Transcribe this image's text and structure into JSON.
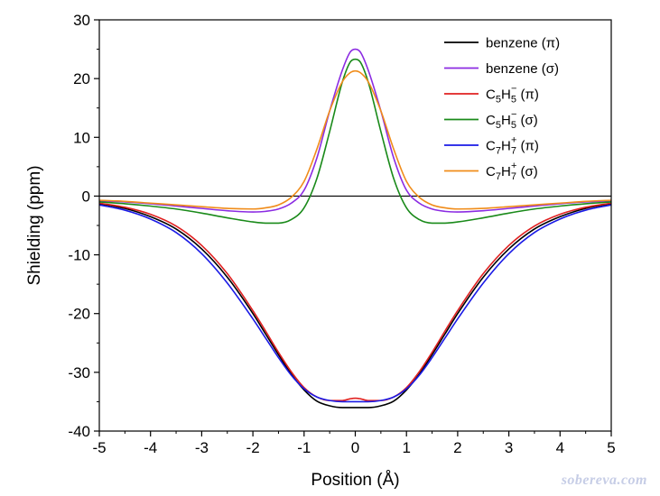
{
  "chart_data": {
    "type": "line",
    "xlabel": "Position (Å)",
    "ylabel": "Shielding (ppm)",
    "xlim": [
      -5,
      5
    ],
    "ylim": [
      -40,
      30
    ],
    "x_ticks": [
      "-5",
      "-4",
      "-3",
      "-2",
      "-1",
      "0",
      "1",
      "2",
      "3",
      "4",
      "5"
    ],
    "y_ticks": [
      "-40",
      "-30",
      "-20",
      "-10",
      "0",
      "10",
      "20",
      "30"
    ],
    "zero_line": 0,
    "legend_position": "top-right",
    "x": [
      -5,
      -4.5,
      -4,
      -3.5,
      -3,
      -2.5,
      -2,
      -1.75,
      -1.5,
      -1.25,
      -1,
      -0.75,
      -0.5,
      -0.25,
      -0.1,
      0,
      0.1,
      0.25,
      0.5,
      0.75,
      1,
      1.25,
      1.5,
      1.75,
      2,
      2.5,
      3,
      3.5,
      4,
      4.5,
      5
    ],
    "series": [
      {
        "name": "benzene (π)",
        "legend": {
          "base": "benzene (π)"
        },
        "color": "#000000",
        "values": [
          -1.3,
          -2.1,
          -3.5,
          -5.6,
          -9.0,
          -13.8,
          -20.0,
          -23.5,
          -27.0,
          -30.3,
          -33.0,
          -34.9,
          -35.7,
          -36.0,
          -36.0,
          -36.0,
          -36.0,
          -36.0,
          -35.7,
          -34.9,
          -33.0,
          -30.3,
          -27.0,
          -23.5,
          -20.0,
          -13.8,
          -9.0,
          -5.6,
          -3.5,
          -2.1,
          -1.3
        ]
      },
      {
        "name": "benzene (σ)",
        "legend": {
          "base": "benzene (σ)"
        },
        "color": "#8b2be2",
        "values": [
          -0.8,
          -1.0,
          -1.3,
          -1.7,
          -2.1,
          -2.5,
          -2.7,
          -2.6,
          -2.2,
          -1.2,
          1.0,
          6.5,
          14.5,
          21.5,
          24.5,
          25.0,
          24.5,
          21.5,
          14.5,
          6.5,
          1.0,
          -1.2,
          -2.2,
          -2.6,
          -2.7,
          -2.5,
          -2.1,
          -1.7,
          -1.3,
          -1.0,
          -0.8
        ]
      },
      {
        "name": "C5H5− (π)",
        "legend": {
          "base": "C",
          "sub1": "5",
          "mid": "H",
          "sub2": "5",
          "sup": "−",
          "tail": " (π)"
        },
        "color": "#e02020",
        "values": [
          -1.2,
          -1.9,
          -3.1,
          -5.1,
          -8.4,
          -13.2,
          -19.5,
          -23.0,
          -26.6,
          -29.9,
          -32.6,
          -34.2,
          -34.8,
          -34.8,
          -34.5,
          -34.4,
          -34.5,
          -34.8,
          -34.8,
          -34.2,
          -32.6,
          -29.9,
          -26.6,
          -23.0,
          -19.5,
          -13.2,
          -8.4,
          -5.1,
          -3.1,
          -1.9,
          -1.2
        ]
      },
      {
        "name": "C5H5− (σ)",
        "legend": {
          "base": "C",
          "sub1": "5",
          "mid": "H",
          "sub2": "5",
          "sup": "−",
          "tail": " (σ)"
        },
        "color": "#1a8a1a",
        "values": [
          -1.0,
          -1.3,
          -1.7,
          -2.2,
          -2.9,
          -3.7,
          -4.4,
          -4.6,
          -4.6,
          -4.0,
          -2.0,
          3.0,
          11.0,
          19.5,
          22.8,
          23.3,
          22.8,
          19.5,
          11.0,
          3.0,
          -2.0,
          -4.0,
          -4.6,
          -4.6,
          -4.4,
          -3.7,
          -2.9,
          -2.2,
          -1.7,
          -1.3,
          -1.0
        ]
      },
      {
        "name": "C7H7+ (π)",
        "legend": {
          "base": "C",
          "sub1": "7",
          "mid": "H",
          "sub2": "7",
          "sup": "+",
          "tail": " (π)"
        },
        "color": "#1a1ae6",
        "values": [
          -1.5,
          -2.4,
          -3.9,
          -6.2,
          -9.8,
          -14.8,
          -20.9,
          -24.2,
          -27.5,
          -30.5,
          -32.8,
          -34.2,
          -34.8,
          -35.0,
          -35.0,
          -35.0,
          -35.0,
          -35.0,
          -34.8,
          -34.2,
          -32.8,
          -30.5,
          -27.5,
          -24.2,
          -20.9,
          -14.8,
          -9.8,
          -6.2,
          -3.9,
          -2.4,
          -1.5
        ]
      },
      {
        "name": "C7H7+ (σ)",
        "legend": {
          "base": "C",
          "sub1": "7",
          "mid": "H",
          "sub2": "7",
          "sup": "+",
          "tail": " (σ)"
        },
        "color": "#f08c1a",
        "values": [
          -0.7,
          -0.9,
          -1.2,
          -1.5,
          -1.8,
          -2.1,
          -2.2,
          -2.0,
          -1.5,
          -0.2,
          2.5,
          8.0,
          14.5,
          19.5,
          21.0,
          21.3,
          21.0,
          19.5,
          14.5,
          8.0,
          2.5,
          -0.2,
          -1.5,
          -2.0,
          -2.2,
          -2.1,
          -1.8,
          -1.5,
          -1.2,
          -0.9,
          -0.7
        ]
      }
    ]
  },
  "watermark": "sobereva.com"
}
